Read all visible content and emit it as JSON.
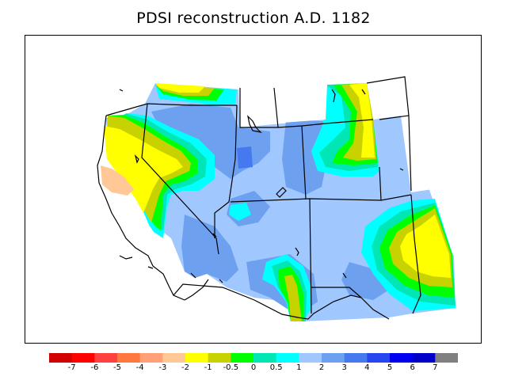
{
  "title": "PDSI reconstruction A.D. 1182",
  "colors": {
    "land_background": "#a0c8ff",
    "boundary": "#000000"
  },
  "map": {
    "shading_note_colors": [
      "#a0c8ff",
      "#6ea0f0",
      "#00ffff",
      "#00e6b4",
      "#00ff00",
      "#c8d200",
      "#ffff00",
      "#ffc896"
    ]
  },
  "legend": {
    "swatches": [
      {
        "color": "#d20000"
      },
      {
        "color": "#ff0000"
      },
      {
        "color": "#ff4040"
      },
      {
        "color": "#ff7840"
      },
      {
        "color": "#ffa078"
      },
      {
        "color": "#ffc896"
      },
      {
        "color": "#ffff00"
      },
      {
        "color": "#c8d200"
      },
      {
        "color": "#00ff00"
      },
      {
        "color": "#00e6b4"
      },
      {
        "color": "#00ffff"
      },
      {
        "color": "#a0c8ff"
      },
      {
        "color": "#6ea0f0"
      },
      {
        "color": "#4678f0"
      },
      {
        "color": "#2846f0"
      },
      {
        "color": "#0000f0"
      },
      {
        "color": "#0000c8"
      },
      {
        "color": "#808080"
      }
    ],
    "labels": [
      "-7",
      "-6",
      "-5",
      "-4",
      "-3",
      "-2",
      "-1",
      "-0.5",
      "0",
      "0.5",
      "1",
      "2",
      "3",
      "4",
      "5",
      "6",
      "7"
    ]
  }
}
